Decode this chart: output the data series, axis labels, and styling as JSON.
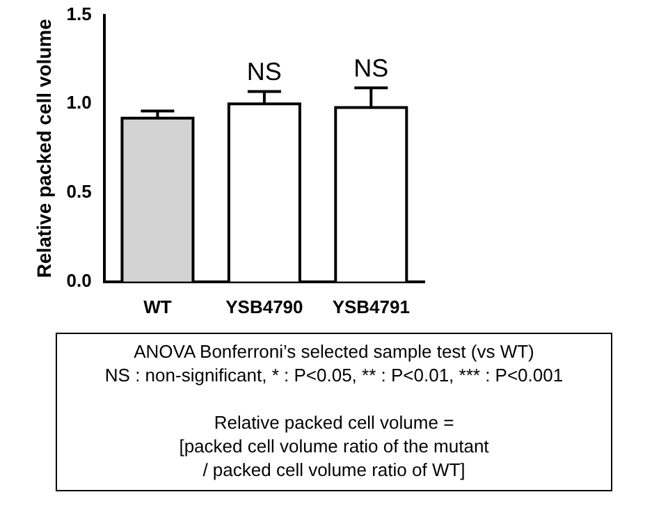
{
  "chart_data": {
    "type": "bar",
    "ylabel": "Relative packed cell volume",
    "categories": [
      "WT",
      "YSB4790",
      "YSB4791"
    ],
    "values": [
      0.92,
      1.0,
      0.98
    ],
    "colors": [
      "#d3d3d3",
      "#ffffff",
      "#ffffff"
    ],
    "errors": [
      [
        0.92,
        0.96
      ],
      [
        1.0,
        1.07
      ],
      [
        0.98,
        1.09
      ]
    ],
    "ylim": [
      0,
      1.5
    ],
    "yticks": [
      {
        "value": 0,
        "label": "0.0"
      },
      {
        "value": 0.5,
        "label": "0.5"
      },
      {
        "value": 1,
        "label": "1.0"
      },
      {
        "value": 1.5,
        "label": "1.5"
      }
    ],
    "annotations": [
      {
        "text": "NS",
        "x": "YSB4790",
        "y": 1.07
      },
      {
        "text": "NS",
        "x": "YSB4791",
        "y": 1.09
      },
      "ANOVA Bonferroni’s selected sample test (vs WT)",
      "NS : non-significant, * : P<0.05, ** : P<0.01, *** : P<0.001",
      "Relative packed cell volume =",
      "[packed cell volume ratio of the mutant",
      "/ packed cell volume ratio of WT]"
    ]
  }
}
